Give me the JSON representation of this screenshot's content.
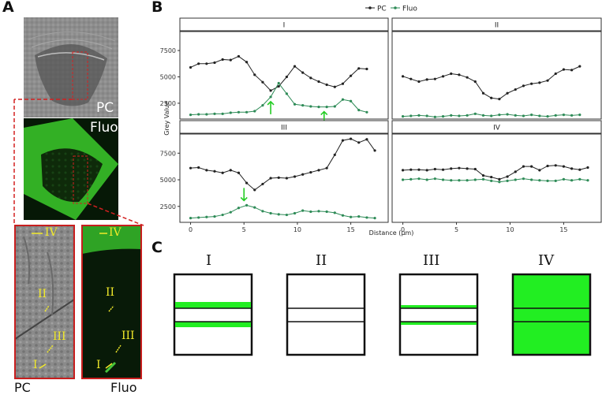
{
  "panels": {
    "a": "A",
    "b": "B",
    "c": "C"
  },
  "panel_a": {
    "pc_label": "PC",
    "fluo_label": "Fluo",
    "zoom_pc_caption": "PC",
    "zoom_fluo_caption": "Fluo",
    "line_labels": [
      "IV",
      "II",
      "III",
      "I"
    ]
  },
  "chart_data": {
    "type": "line",
    "legend": [
      "PC",
      "Fluo"
    ],
    "legend_position": "top",
    "xlabel": "Distance (µm)",
    "ylabel": "Grey Value",
    "xlim": [
      -1,
      18.5
    ],
    "ylim": [
      1000,
      9300
    ],
    "x_ticks": [
      0,
      5,
      10,
      15
    ],
    "y_ticks": [
      2500,
      5000,
      7500
    ],
    "y_tick_labels": [
      "2500",
      "5000",
      "7500"
    ],
    "x_tick_labels": [
      "0",
      "5",
      "10",
      "15"
    ],
    "colors": {
      "PC": "#222222",
      "Fluo": "#2e8b57",
      "arrow": "#22cc22"
    },
    "facets": [
      {
        "title": "I",
        "x": [
          0,
          0.75,
          1.5,
          2.25,
          3,
          3.75,
          4.5,
          5.25,
          6,
          6.75,
          7.5,
          8.25,
          9,
          9.75,
          10.5,
          11.25,
          12,
          12.75,
          13.5,
          14.25,
          15,
          15.75,
          16.5
        ],
        "series": [
          {
            "name": "PC",
            "values": [
              5900,
              6250,
              6250,
              6350,
              6650,
              6600,
              6950,
              6400,
              5200,
              4500,
              3700,
              4100,
              5000,
              6000,
              5400,
              4900,
              4550,
              4250,
              4050,
              4350,
              5100,
              5800,
              5750
            ]
          },
          {
            "name": "Fluo",
            "values": [
              1400,
              1450,
              1450,
              1500,
              1500,
              1600,
              1650,
              1650,
              1750,
              2300,
              3100,
              4400,
              3400,
              2400,
              2300,
              2200,
              2150,
              2150,
              2200,
              2850,
              2700,
              1850,
              1650
            ]
          }
        ],
        "arrows": [
          {
            "x": 7.5,
            "direction": "up"
          },
          {
            "x": 12.5,
            "direction": "up"
          }
        ]
      },
      {
        "title": "II",
        "x": [
          0,
          0.75,
          1.5,
          2.25,
          3,
          3.75,
          4.5,
          5.25,
          6,
          6.75,
          7.5,
          8.25,
          9,
          9.75,
          10.5,
          11.25,
          12,
          12.75,
          13.5,
          14.25,
          15,
          15.75,
          16.5
        ],
        "series": [
          {
            "name": "PC",
            "values": [
              5050,
              4800,
              4550,
              4750,
              4800,
              5050,
              5300,
              5200,
              4950,
              4550,
              3450,
              3000,
              2900,
              3450,
              3800,
              4150,
              4350,
              4450,
              4650,
              5300,
              5700,
              5650,
              6000
            ]
          },
          {
            "name": "Fluo",
            "values": [
              1250,
              1300,
              1350,
              1300,
              1200,
              1250,
              1350,
              1300,
              1350,
              1500,
              1350,
              1300,
              1400,
              1450,
              1350,
              1300,
              1400,
              1300,
              1250,
              1350,
              1400,
              1350,
              1400
            ]
          }
        ],
        "arrows": []
      },
      {
        "title": "III",
        "x": [
          0,
          0.75,
          1.5,
          2.25,
          3,
          3.75,
          4.5,
          5.25,
          6,
          6.75,
          7.5,
          8.25,
          9,
          9.75,
          10.5,
          11.25,
          12,
          12.75,
          13.5,
          14.25,
          15,
          15.75,
          16.5,
          17.25
        ],
        "series": [
          {
            "name": "PC",
            "values": [
              6100,
              6150,
              5900,
              5800,
              5650,
              5900,
              5650,
              4700,
              4050,
              4600,
              5150,
              5200,
              5150,
              5300,
              5500,
              5700,
              5900,
              6100,
              7350,
              8700,
              8850,
              8500,
              8800,
              7750
            ]
          },
          {
            "name": "Fluo",
            "values": [
              1400,
              1450,
              1500,
              1550,
              1700,
              1950,
              2350,
              2600,
              2400,
              2050,
              1850,
              1750,
              1700,
              1850,
              2100,
              2000,
              2050,
              2000,
              1900,
              1650,
              1500,
              1550,
              1450,
              1400
            ]
          }
        ],
        "arrows": [
          {
            "x": 5,
            "direction": "down"
          }
        ]
      },
      {
        "title": "IV",
        "x": [
          0,
          0.75,
          1.5,
          2.25,
          3,
          3.75,
          4.5,
          5.25,
          6,
          6.75,
          7.5,
          8.25,
          9,
          9.75,
          10.5,
          11.25,
          12,
          12.75,
          13.5,
          14.25,
          15,
          15.75,
          16.5,
          17.25
        ],
        "series": [
          {
            "name": "PC",
            "values": [
              5900,
              5950,
              5950,
              5900,
              6000,
              5950,
              6050,
              6100,
              6050,
              6000,
              5400,
              5250,
              5050,
              5300,
              5750,
              6250,
              6250,
              5900,
              6300,
              6350,
              6250,
              6050,
              5950,
              6150
            ]
          },
          {
            "name": "Fluo",
            "values": [
              5000,
              5050,
              5100,
              5000,
              5100,
              5000,
              4950,
              4950,
              4950,
              5000,
              5050,
              4900,
              4800,
              4900,
              5000,
              5100,
              5000,
              4950,
              4900,
              4900,
              5050,
              4950,
              5050,
              4950
            ]
          }
        ],
        "arrows": []
      }
    ]
  },
  "panel_c": {
    "titles": [
      "I",
      "II",
      "III",
      "IV"
    ]
  }
}
